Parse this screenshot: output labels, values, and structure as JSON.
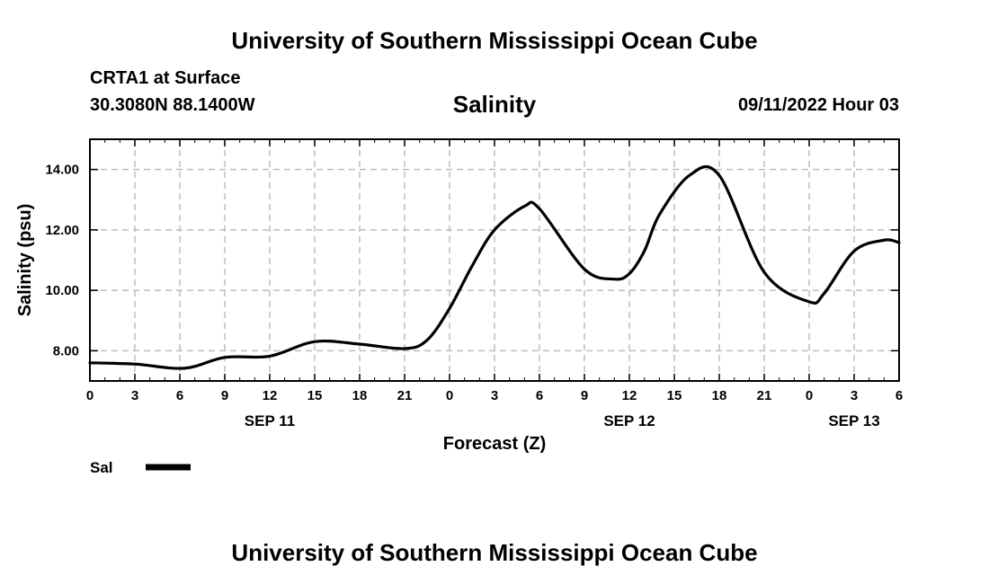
{
  "header": {
    "title": "University of Southern Mississippi Ocean Cube",
    "station": "CRTA1 at Surface",
    "coords": "30.3080N  88.1400W",
    "variable": "Salinity",
    "datetime": "09/11/2022 Hour 03"
  },
  "footer": {
    "title": "University of Southern Mississippi Ocean Cube"
  },
  "chart_data": {
    "type": "line",
    "title": "Salinity",
    "xlabel": "Forecast (Z)",
    "ylabel": "Salinity (psu)",
    "x_unit": "forecast hour from SEP 11 00Z",
    "xlim": [
      0,
      54
    ],
    "ylim": [
      7.0,
      15.0
    ],
    "x_ticks": [
      0,
      3,
      6,
      9,
      12,
      15,
      18,
      21,
      24,
      27,
      30,
      33,
      36,
      39,
      42,
      45,
      48,
      51,
      54
    ],
    "x_tick_labels": [
      "0",
      "3",
      "6",
      "9",
      "12",
      "15",
      "18",
      "21",
      "0",
      "3",
      "6",
      "9",
      "12",
      "15",
      "18",
      "21",
      "0",
      "3",
      "6"
    ],
    "y_ticks": [
      8.0,
      10.0,
      12.0,
      14.0
    ],
    "y_tick_labels": [
      "8.00",
      "10.00",
      "12.00",
      "14.00"
    ],
    "date_labels": [
      {
        "x": 12,
        "label": "SEP 11"
      },
      {
        "x": 36,
        "label": "SEP 12"
      },
      {
        "x": 51,
        "label": "SEP 13"
      }
    ],
    "grid": true,
    "legend": {
      "position": "bottom-left",
      "entries": [
        "Sal"
      ]
    },
    "series": [
      {
        "name": "Sal",
        "color": "#000000",
        "x": [
          0,
          3,
          6.3,
          9,
          12,
          15,
          18,
          21,
          22.5,
          24,
          25.5,
          27,
          29,
          30,
          33,
          35,
          36,
          37,
          38,
          40,
          42,
          45,
          48,
          49,
          51,
          53,
          54
        ],
        "values": [
          7.6,
          7.56,
          7.42,
          7.78,
          7.82,
          8.3,
          8.22,
          8.07,
          8.35,
          9.4,
          10.8,
          12.0,
          12.78,
          12.7,
          10.7,
          10.37,
          10.55,
          11.3,
          12.5,
          13.8,
          13.8,
          10.6,
          9.62,
          9.9,
          11.3,
          11.66,
          11.58
        ]
      }
    ]
  }
}
